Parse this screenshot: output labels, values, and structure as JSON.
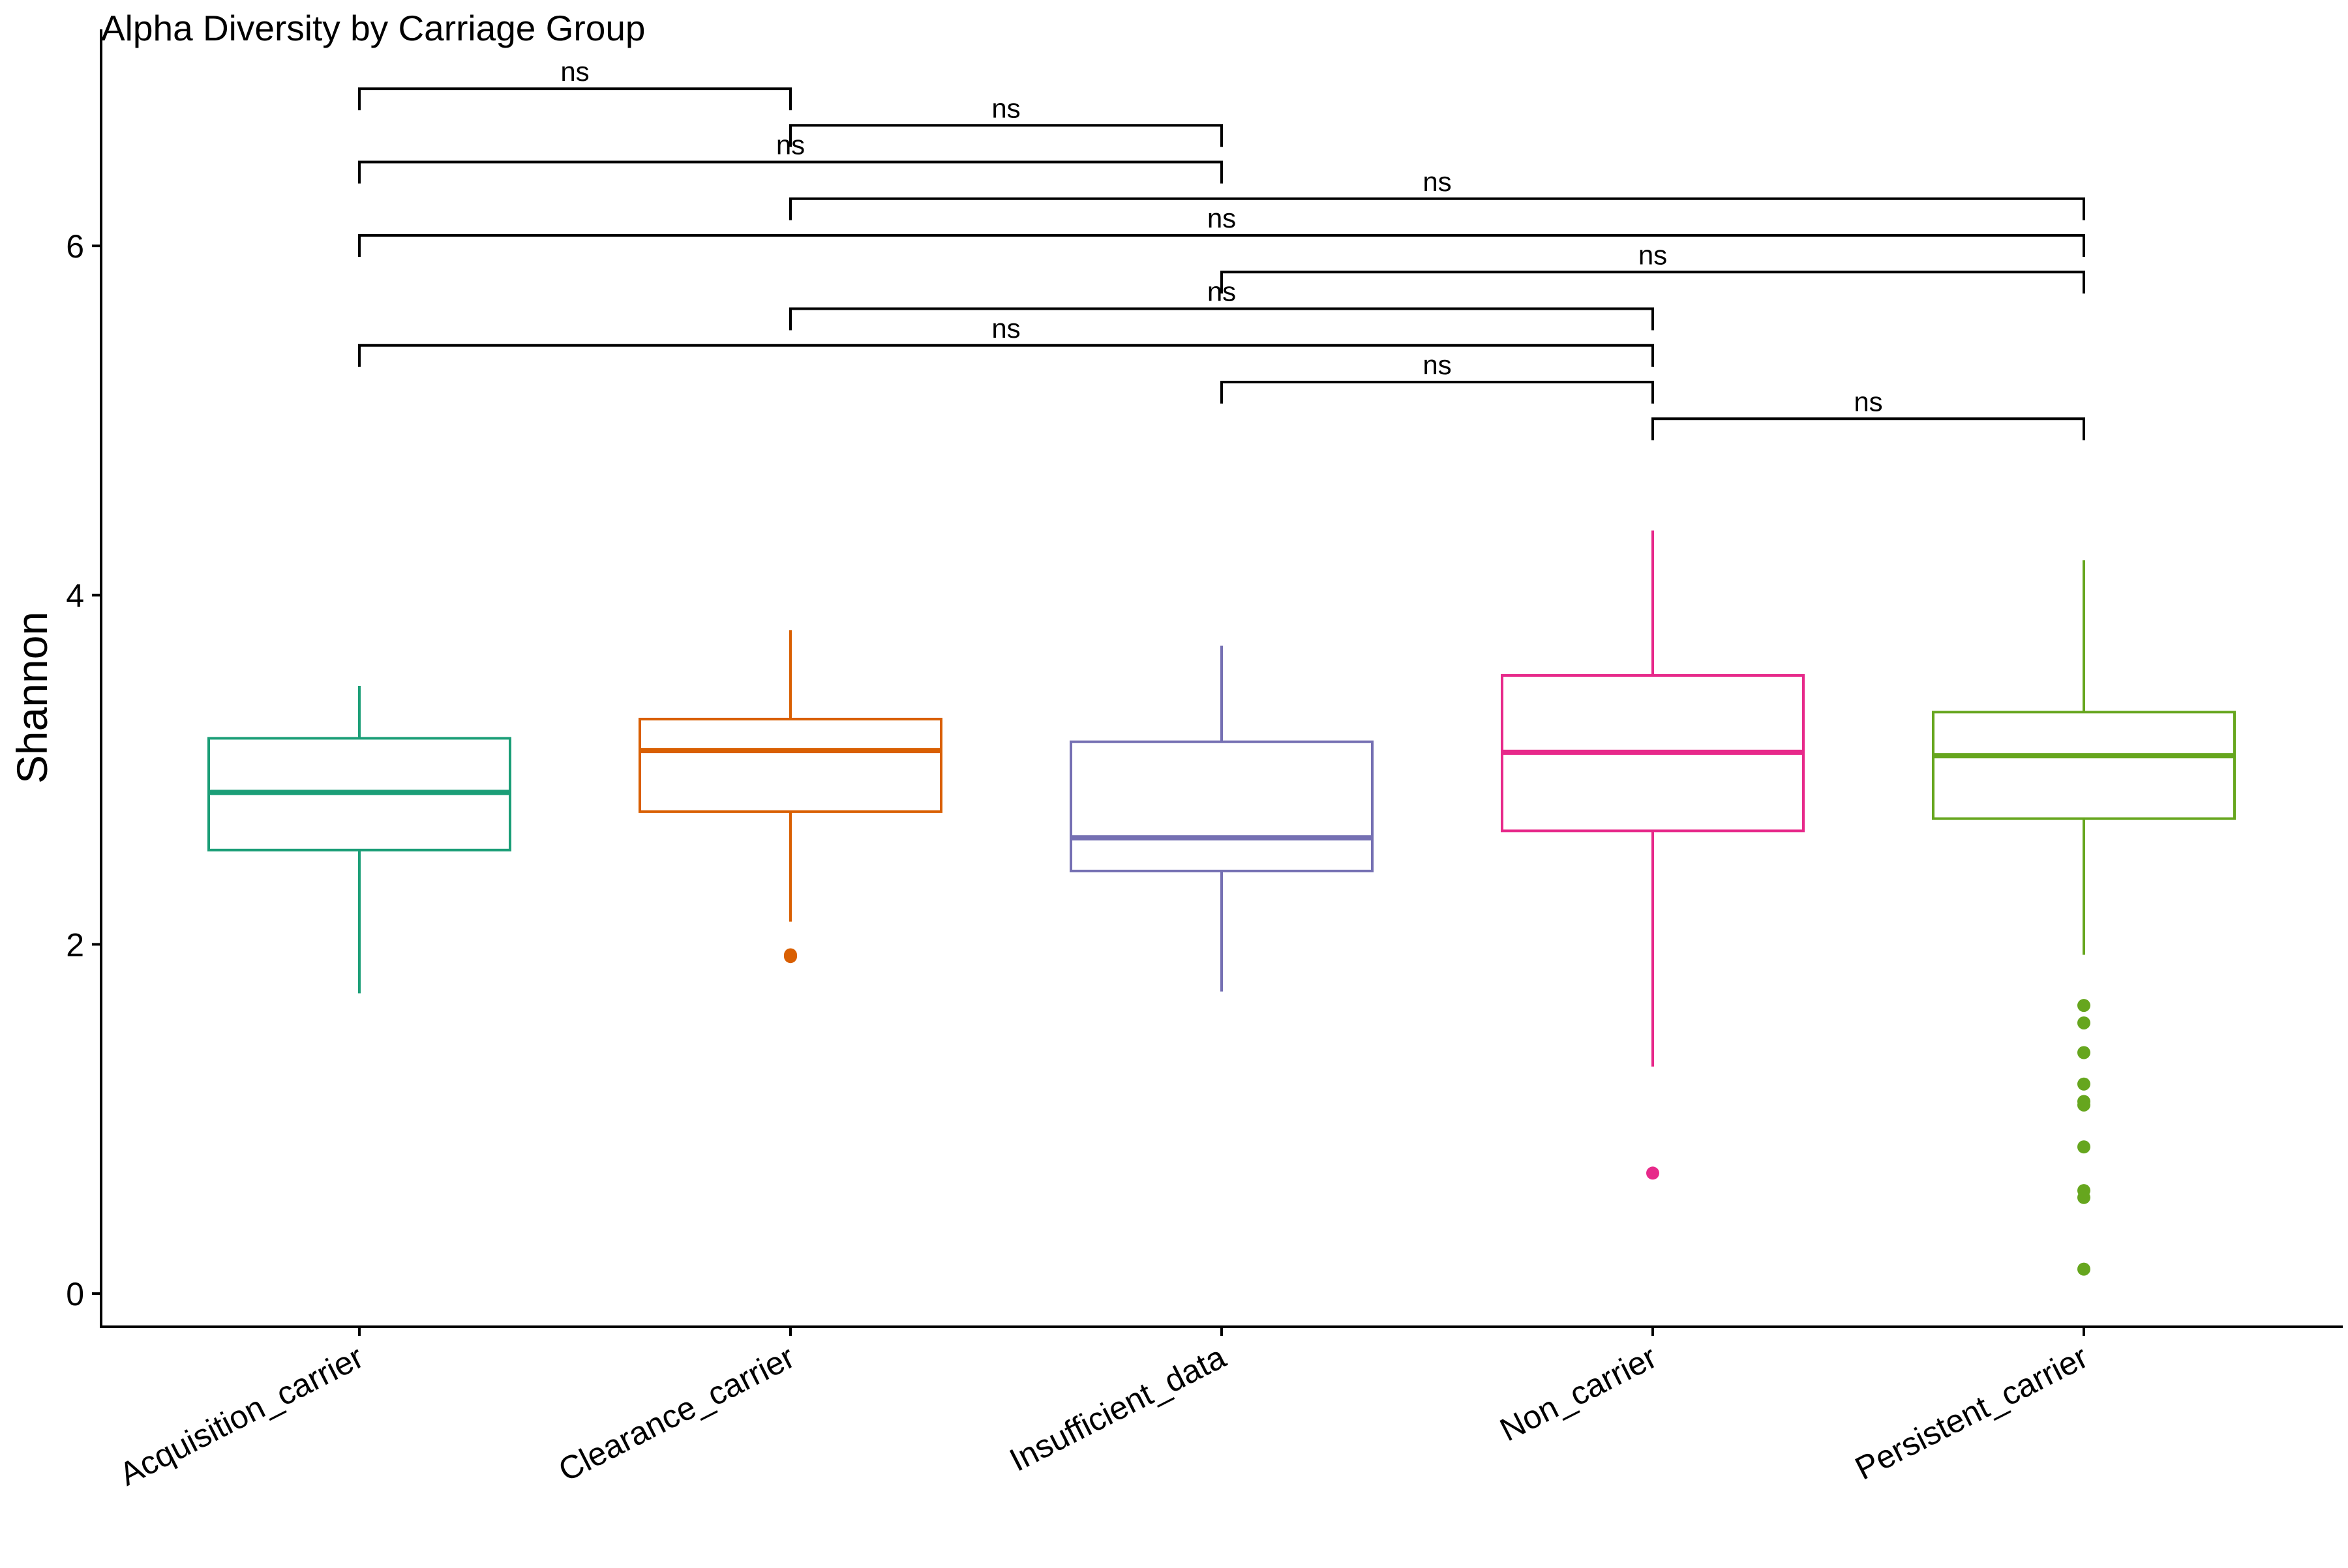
{
  "chart_data": {
    "type": "box",
    "title": "Alpha Diversity by Carriage Group",
    "xlabel": "",
    "ylabel": "Shannon",
    "ylim": [
      -0.19,
      7.24
    ],
    "yticks": [
      0,
      2,
      4,
      6
    ],
    "grid": false,
    "legend": "none",
    "categories": [
      "Acquisition_carrier",
      "Clearance_carrier",
      "Insufficient_data",
      "Non_carrier",
      "Persistent_carrier"
    ],
    "series": [
      {
        "category": "Acquisition_carrier",
        "color": "#1B9E77",
        "whisker_low": 1.72,
        "q1": 2.54,
        "median": 2.87,
        "q3": 3.18,
        "whisker_high": 3.48,
        "outliers": []
      },
      {
        "category": "Clearance_carrier",
        "color": "#D95F02",
        "whisker_low": 2.13,
        "q1": 2.76,
        "median": 3.11,
        "q3": 3.29,
        "whisker_high": 3.8,
        "outliers": [
          1.93,
          1.94
        ]
      },
      {
        "category": "Insufficient_data",
        "color": "#7570B3",
        "whisker_low": 1.73,
        "q1": 2.42,
        "median": 2.61,
        "q3": 3.16,
        "whisker_high": 3.71,
        "outliers": []
      },
      {
        "category": "Non_carrier",
        "color": "#E7298A",
        "whisker_low": 1.3,
        "q1": 2.65,
        "median": 3.1,
        "q3": 3.54,
        "whisker_high": 4.37,
        "outliers": [
          0.69
        ]
      },
      {
        "category": "Persistent_carrier",
        "color": "#66A61E",
        "whisker_low": 1.94,
        "q1": 2.72,
        "median": 3.08,
        "q3": 3.33,
        "whisker_high": 4.2,
        "outliers": [
          1.65,
          1.55,
          1.38,
          1.2,
          1.1,
          1.08,
          0.84,
          0.59,
          0.55,
          0.14
        ]
      }
    ],
    "comparisons": [
      {
        "from": "Acquisition_carrier",
        "to": "Clearance_carrier",
        "y": 6.9,
        "label": "ns"
      },
      {
        "from": "Clearance_carrier",
        "to": "Insufficient_data",
        "y": 6.69,
        "label": "ns"
      },
      {
        "from": "Acquisition_carrier",
        "to": "Insufficient_data",
        "y": 6.48,
        "label": "ns"
      },
      {
        "from": "Clearance_carrier",
        "to": "Persistent_carrier",
        "y": 6.27,
        "label": "ns"
      },
      {
        "from": "Acquisition_carrier",
        "to": "Persistent_carrier",
        "y": 6.06,
        "label": "ns"
      },
      {
        "from": "Insufficient_data",
        "to": "Persistent_carrier",
        "y": 5.85,
        "label": "ns"
      },
      {
        "from": "Clearance_carrier",
        "to": "Non_carrier",
        "y": 5.64,
        "label": "ns"
      },
      {
        "from": "Acquisition_carrier",
        "to": "Non_carrier",
        "y": 5.43,
        "label": "ns"
      },
      {
        "from": "Insufficient_data",
        "to": "Non_carrier",
        "y": 5.22,
        "label": "ns"
      },
      {
        "from": "Non_carrier",
        "to": "Persistent_carrier",
        "y": 5.01,
        "label": "ns"
      }
    ]
  }
}
